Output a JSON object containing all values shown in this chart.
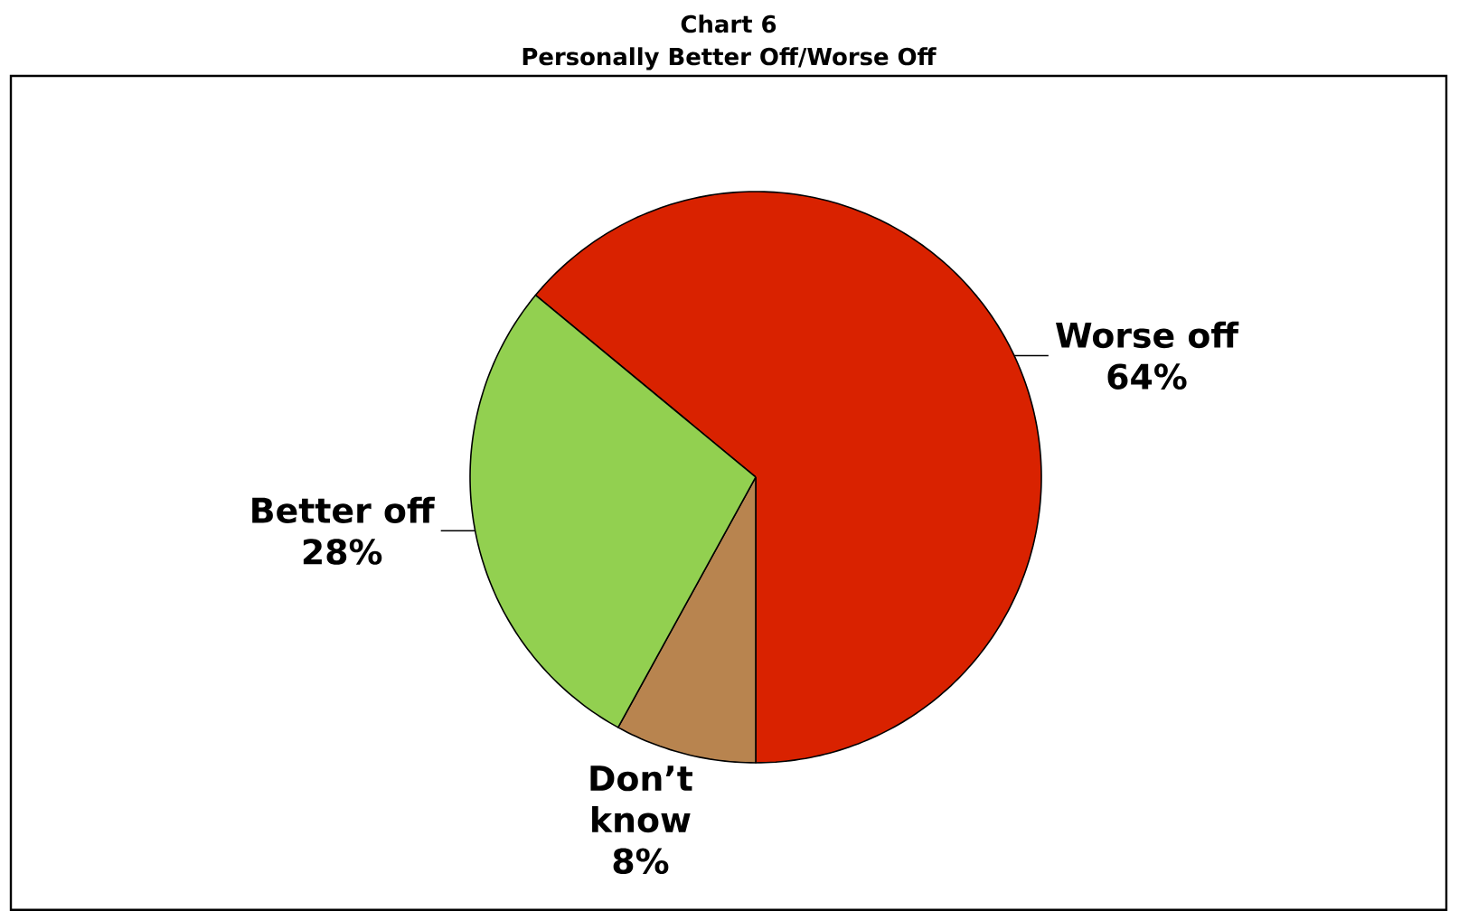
{
  "chart_data": {
    "type": "pie",
    "title": "Chart 6",
    "subtitle": "Personally Better Off/Worse Off",
    "categories": [
      "Worse off",
      "Don’t know",
      "Better off"
    ],
    "values": [
      64,
      8,
      28
    ],
    "colors": [
      "#d92200",
      "#b8844f",
      "#92d050"
    ],
    "value_labels": [
      "64%",
      "8%",
      "28%"
    ]
  }
}
